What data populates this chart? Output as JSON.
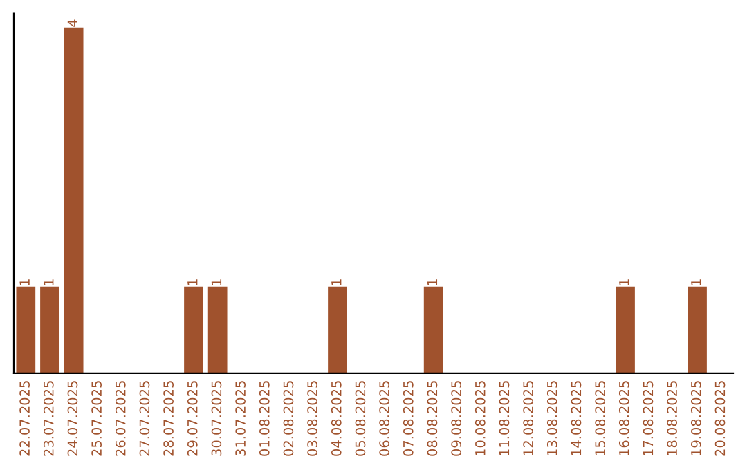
{
  "chart_data": {
    "type": "bar",
    "categories": [
      "22.07.2025",
      "23.07.2025",
      "24.07.2025",
      "25.07.2025",
      "26.07.2025",
      "27.07.2025",
      "28.07.2025",
      "29.07.2025",
      "30.07.2025",
      "31.07.2025",
      "01.08.2025",
      "02.08.2025",
      "03.08.2025",
      "04.08.2025",
      "05.08.2025",
      "06.08.2025",
      "07.08.2025",
      "08.08.2025",
      "09.08.2025",
      "10.08.2025",
      "11.08.2025",
      "12.08.2025",
      "13.08.2025",
      "14.08.2025",
      "15.08.2025",
      "16.08.2025",
      "17.08.2025",
      "18.08.2025",
      "19.08.2025",
      "20.08.2025"
    ],
    "values": [
      1,
      1,
      4,
      0,
      0,
      0,
      0,
      1,
      1,
      0,
      0,
      0,
      0,
      1,
      0,
      0,
      0,
      1,
      0,
      0,
      0,
      0,
      0,
      0,
      0,
      1,
      0,
      0,
      1,
      0
    ],
    "value_labels": [
      "1",
      "1",
      "4",
      null,
      null,
      null,
      null,
      "1",
      "1",
      null,
      null,
      null,
      null,
      "1",
      null,
      null,
      null,
      "1",
      null,
      null,
      null,
      null,
      null,
      null,
      null,
      "1",
      null,
      null,
      "1",
      null
    ],
    "color": "#a0522d",
    "tick_labels": "x",
    "grid": false,
    "legend": false
  }
}
